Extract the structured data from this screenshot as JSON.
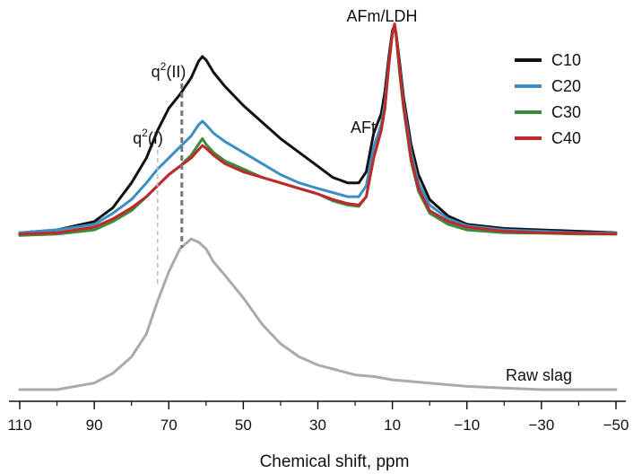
{
  "chart_data": {
    "type": "line",
    "xlabel": "Chemical shift, ppm",
    "ylabel": "",
    "x_reversed": true,
    "xlim": [
      110,
      -50
    ],
    "ylim": [
      0,
      1
    ],
    "xticks": [
      {
        "value": 110,
        "label": "110"
      },
      {
        "value": 90,
        "label": "90"
      },
      {
        "value": 70,
        "label": "70"
      },
      {
        "value": 50,
        "label": "50"
      },
      {
        "value": 30,
        "label": "30"
      },
      {
        "value": 10,
        "label": "10"
      },
      {
        "value": -10,
        "label": "−10"
      },
      {
        "value": -30,
        "label": "−30"
      },
      {
        "value": -50,
        "label": "−50"
      }
    ],
    "grid": false,
    "legend_position": "top-right",
    "series": [
      {
        "name": "C10",
        "color": "#111111",
        "x": [
          110,
          100,
          90,
          85,
          80,
          76,
          73,
          70,
          67,
          64,
          62,
          61,
          60,
          58,
          55,
          50,
          45,
          40,
          35,
          30,
          26,
          22,
          19,
          17,
          15,
          13,
          12,
          11,
          10,
          9.4,
          9,
          8,
          7,
          5,
          3,
          0,
          -5,
          -10,
          -20,
          -30,
          -40,
          -50
        ],
        "y": [
          0.23,
          0.24,
          0.27,
          0.32,
          0.41,
          0.5,
          0.6,
          0.68,
          0.73,
          0.79,
          0.85,
          0.867,
          0.855,
          0.81,
          0.76,
          0.69,
          0.63,
          0.57,
          0.52,
          0.47,
          0.43,
          0.41,
          0.41,
          0.45,
          0.59,
          0.66,
          0.74,
          0.86,
          0.96,
          0.98,
          0.95,
          0.84,
          0.72,
          0.55,
          0.44,
          0.35,
          0.29,
          0.26,
          0.245,
          0.24,
          0.235,
          0.23
        ]
      },
      {
        "name": "C20",
        "color": "#3a8fc4",
        "x": [
          110,
          100,
          90,
          85,
          80,
          76,
          73,
          70,
          67,
          64,
          62,
          61,
          60,
          58,
          55,
          50,
          45,
          40,
          35,
          30,
          26,
          22,
          19,
          17,
          15,
          13,
          12,
          11,
          10,
          9.4,
          9,
          8,
          7,
          5,
          3,
          0,
          -5,
          -10,
          -20,
          -30,
          -40,
          -50
        ],
        "y": [
          0.23,
          0.24,
          0.26,
          0.3,
          0.35,
          0.41,
          0.46,
          0.5,
          0.54,
          0.58,
          0.62,
          0.633,
          0.62,
          0.59,
          0.56,
          0.52,
          0.48,
          0.44,
          0.41,
          0.39,
          0.375,
          0.36,
          0.36,
          0.4,
          0.54,
          0.62,
          0.7,
          0.84,
          0.95,
          0.975,
          0.94,
          0.82,
          0.7,
          0.52,
          0.41,
          0.33,
          0.28,
          0.255,
          0.24,
          0.235,
          0.23,
          0.228
        ]
      },
      {
        "name": "C30",
        "color": "#3b8a3e",
        "x": [
          110,
          100,
          90,
          85,
          80,
          76,
          73,
          70,
          67,
          64,
          62,
          61,
          60,
          58,
          55,
          50,
          45,
          40,
          35,
          30,
          26,
          22,
          19,
          17,
          15,
          13,
          12,
          11,
          10,
          9.4,
          9,
          8,
          7,
          5,
          3,
          0,
          -5,
          -10,
          -20,
          -30,
          -40,
          -50
        ],
        "y": [
          0.22,
          0.225,
          0.24,
          0.27,
          0.31,
          0.36,
          0.4,
          0.44,
          0.47,
          0.51,
          0.55,
          0.57,
          0.55,
          0.52,
          0.49,
          0.46,
          0.43,
          0.41,
          0.39,
          0.37,
          0.345,
          0.33,
          0.325,
          0.36,
          0.5,
          0.6,
          0.68,
          0.83,
          0.95,
          0.975,
          0.94,
          0.8,
          0.68,
          0.49,
          0.38,
          0.3,
          0.26,
          0.24,
          0.23,
          0.228,
          0.225,
          0.225
        ]
      },
      {
        "name": "C40",
        "color": "#c0282b",
        "x": [
          110,
          100,
          90,
          85,
          80,
          76,
          73,
          70,
          67,
          64,
          62,
          61,
          60,
          58,
          55,
          50,
          45,
          40,
          35,
          30,
          26,
          22,
          19,
          17,
          15,
          13,
          12,
          11,
          10,
          9.4,
          9,
          8,
          7,
          5,
          3,
          0,
          -5,
          -10,
          -20,
          -30,
          -40,
          -50
        ],
        "y": [
          0.225,
          0.23,
          0.25,
          0.28,
          0.32,
          0.36,
          0.4,
          0.44,
          0.47,
          0.5,
          0.53,
          0.545,
          0.535,
          0.51,
          0.48,
          0.45,
          0.43,
          0.41,
          0.39,
          0.37,
          0.35,
          0.335,
          0.33,
          0.36,
          0.5,
          0.6,
          0.68,
          0.83,
          0.95,
          0.985,
          0.95,
          0.81,
          0.69,
          0.5,
          0.39,
          0.31,
          0.27,
          0.25,
          0.235,
          0.23,
          0.228,
          0.225
        ]
      },
      {
        "name": "Raw slag",
        "color": "#aaaaaa",
        "legend": false,
        "x": [
          110,
          100,
          90,
          85,
          80,
          76,
          73,
          70,
          67,
          64,
          62,
          60,
          58,
          55,
          50,
          45,
          40,
          35,
          30,
          25,
          20,
          15,
          10,
          0,
          -10,
          -20,
          -30,
          -40,
          -50
        ],
        "y": [
          0.0,
          0.0,
          0.02,
          0.05,
          0.1,
          0.17,
          0.27,
          0.36,
          0.43,
          0.46,
          0.45,
          0.43,
          0.39,
          0.35,
          0.28,
          0.2,
          0.14,
          0.1,
          0.075,
          0.06,
          0.045,
          0.04,
          0.03,
          0.02,
          0.01,
          0.005,
          0.0,
          0.0,
          0.0
        ]
      }
    ],
    "annotations": [
      {
        "name": "q2-ii",
        "label_base": "q",
        "label_sup": "2",
        "label_rest": "(II)",
        "x": 66.5,
        "marker_line": "dashed-dark"
      },
      {
        "name": "q2-i",
        "label_base": "q",
        "label_sup": "2",
        "label_rest": "(I)",
        "x": 73,
        "marker_line": "dashed-light"
      },
      {
        "name": "aft",
        "label": "AFt",
        "x": 13.5
      },
      {
        "name": "afm-ldh",
        "label": "AFm/LDH",
        "x": 9.4
      },
      {
        "name": "raw-slag",
        "label": "Raw slag",
        "x": -30
      }
    ]
  }
}
